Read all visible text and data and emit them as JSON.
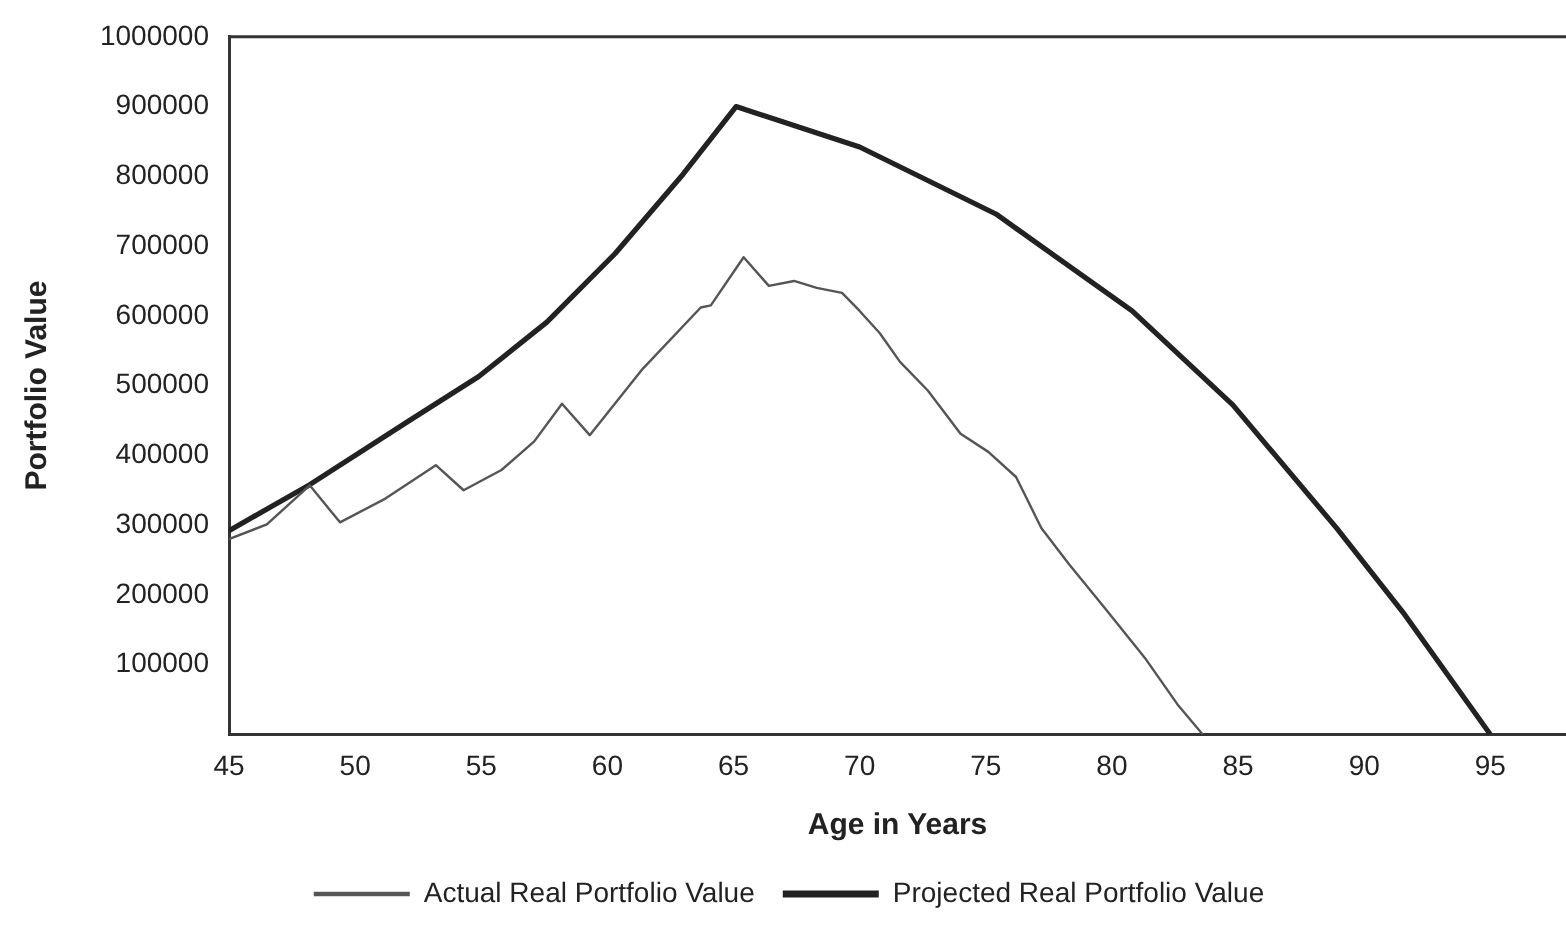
{
  "chart_data": {
    "type": "line",
    "xlabel": "Age in Years",
    "ylabel": "Portfolio Value",
    "xlim": [
      45,
      98
    ],
    "xticks": [
      45,
      50,
      55,
      60,
      65,
      70,
      75,
      80,
      85,
      90,
      95
    ],
    "ylim": [
      0,
      1000000
    ],
    "yticks": [
      100000,
      200000,
      300000,
      400000,
      500000,
      600000,
      700000,
      800000,
      900000,
      1000000
    ],
    "grid": false,
    "legend": "bottom",
    "marker": "none",
    "line_style": "solid",
    "series": [
      {
        "name": "Actual Real Portfolio Value",
        "color": "#555555",
        "x": [
          45,
          46.5,
          48.2,
          49.4,
          51.2,
          53.2,
          54.3,
          55.8,
          57.1,
          58.2,
          59.3,
          61.4,
          63.7,
          64.1,
          65.4,
          66.4,
          67.4,
          68.3,
          69.3,
          70.0,
          70.8,
          71.6,
          72.7,
          74.0,
          75.1,
          76.2,
          77.2,
          78.3,
          79.7,
          81.3,
          82.6,
          83.6
        ],
        "values": [
          280000,
          301000,
          357000,
          304000,
          338000,
          386000,
          350000,
          379000,
          420000,
          474000,
          429000,
          524000,
          612000,
          615000,
          684000,
          643000,
          650000,
          640000,
          633000,
          607000,
          575000,
          534000,
          493000,
          431000,
          405000,
          369000,
          296000,
          244000,
          182000,
          110000,
          43000,
          0
        ]
      },
      {
        "name": "Projected Real Portfolio Value",
        "color": "#222222",
        "x": [
          45,
          48.2,
          52.2,
          54.9,
          57.6,
          60.3,
          63.0,
          65.1,
          70.0,
          75.4,
          80.8,
          84.8,
          88.9,
          91.6,
          95.0
        ],
        "values": [
          292000,
          358000,
          451000,
          513000,
          591000,
          689000,
          803000,
          900000,
          842000,
          746000,
          607000,
          472000,
          296000,
          172000,
          0
        ]
      }
    ]
  }
}
